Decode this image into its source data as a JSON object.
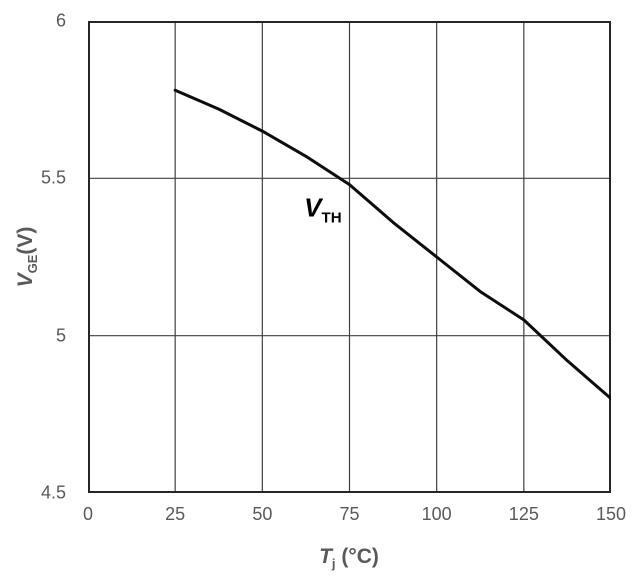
{
  "chart_data": {
    "type": "line",
    "title": "",
    "x": [
      25,
      37.5,
      50,
      62.5,
      75,
      87.5,
      100,
      112.5,
      125,
      137.5,
      150
    ],
    "y": [
      5.78,
      5.72,
      5.65,
      5.57,
      5.48,
      5.36,
      5.25,
      5.14,
      5.05,
      4.92,
      4.8
    ],
    "series_name": "VTH",
    "xlabel": "Tj (°C)",
    "ylabel": "VGE(V)",
    "xlim": [
      0,
      150
    ],
    "ylim": [
      4.5,
      6
    ],
    "x_ticks": [
      0,
      25,
      50,
      75,
      100,
      125,
      150
    ],
    "y_ticks": [
      4.5,
      5,
      5.5,
      6
    ],
    "x_tick_labels": [
      "0",
      "25",
      "50",
      "75",
      "100",
      "125",
      "150"
    ],
    "y_tick_labels": [
      "6",
      "5.5",
      "5",
      "4.5"
    ],
    "grid": true,
    "legend": false,
    "annotation": {
      "text": "VTH",
      "x": 62,
      "y": 5.4
    }
  },
  "labels": {
    "y_title": {
      "main": "V",
      "sub": "GE",
      "rest": "(V)"
    },
    "x_title": {
      "main": "T",
      "sub": "j",
      "rest": " (°C)"
    },
    "annotation": {
      "main": "V",
      "sub": "TH"
    }
  },
  "colors": {
    "text": "#595959",
    "grid": "#404040",
    "border": "#262626",
    "line": "#0d0d0d",
    "annotation": "#000000",
    "background": "#ffffff"
  }
}
